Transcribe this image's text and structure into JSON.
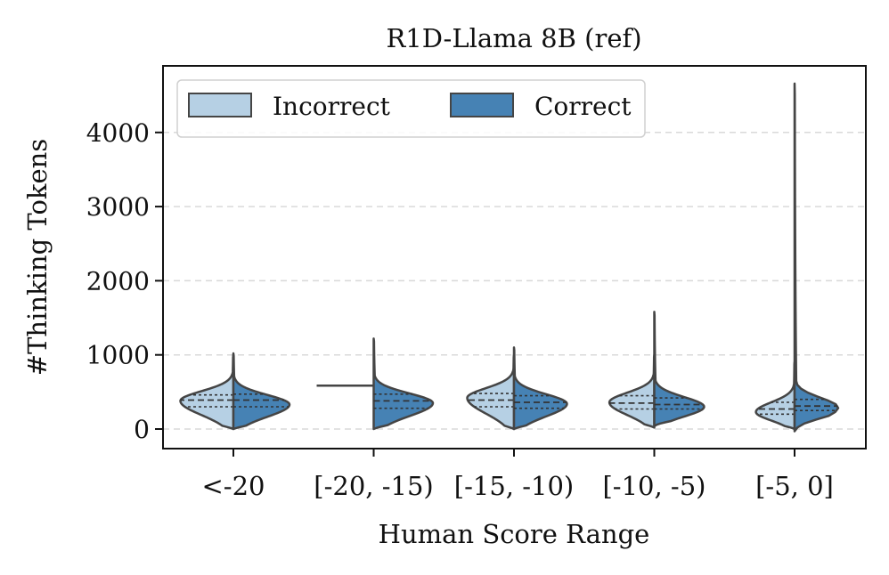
{
  "chart_data": {
    "type": "violin",
    "title": "R1D-Llama 8B (ref)",
    "xlabel": "Human Score Range",
    "ylabel": "#Thinking Tokens",
    "ylim": [
      -250,
      4780
    ],
    "yticks": [
      0,
      1000,
      2000,
      3000,
      4000
    ],
    "grid": "horizontal dashed",
    "legend_position": "top-left",
    "categories": [
      "<-20",
      "[-20, -15)",
      "[-15, -10)",
      "[-10, -5)",
      "[-5, 0]"
    ],
    "series": [
      {
        "name": "Incorrect",
        "color": "#b6d0e4",
        "side": "left",
        "violins": [
          {
            "min": 0,
            "max": 1000,
            "mode": 380,
            "q1": 300,
            "median": 390,
            "q3": 460,
            "width": 0.85
          },
          {
            "min": 580,
            "max": 590,
            "mode": 585,
            "q1": 585,
            "median": 585,
            "q3": 585,
            "width": 1.0,
            "degenerate": true
          },
          {
            "min": 0,
            "max": 1000,
            "mode": 420,
            "q1": 300,
            "median": 390,
            "q3": 480,
            "width": 0.75
          },
          {
            "min": 20,
            "max": 1000,
            "mode": 360,
            "q1": 270,
            "median": 350,
            "q3": 450,
            "width": 0.72
          },
          {
            "min": 0,
            "max": 900,
            "mode": 230,
            "q1": 200,
            "median": 270,
            "q3": 360,
            "width": 0.62
          }
        ]
      },
      {
        "name": "Correct",
        "color": "#4682b4",
        "side": "right",
        "violins": [
          {
            "min": 0,
            "max": 1020,
            "mode": 330,
            "q1": 300,
            "median": 390,
            "q3": 470,
            "width": 0.9
          },
          {
            "min": 0,
            "max": 1220,
            "mode": 350,
            "q1": 280,
            "median": 380,
            "q3": 470,
            "width": 0.95
          },
          {
            "min": 0,
            "max": 1100,
            "mode": 340,
            "q1": 280,
            "median": 360,
            "q3": 450,
            "width": 0.85
          },
          {
            "min": 40,
            "max": 1580,
            "mode": 300,
            "q1": 270,
            "median": 330,
            "q3": 420,
            "width": 0.8
          },
          {
            "min": -30,
            "max": 4660,
            "mode": 290,
            "q1": 250,
            "median": 310,
            "q3": 400,
            "width": 0.7
          }
        ]
      }
    ]
  }
}
